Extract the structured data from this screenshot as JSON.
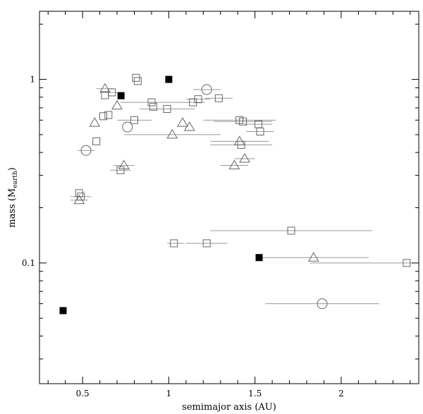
{
  "chart_data": {
    "type": "scatter",
    "title": "",
    "xlabel": "semimajor axis (AU)",
    "ylabel": {
      "main": "mass (M",
      "sub": "earth",
      "close": ")"
    },
    "xlim": [
      0.25,
      2.45
    ],
    "ylim": [
      0.022,
      2.35
    ],
    "y_scale": "log",
    "grid": false,
    "legend": "none",
    "x_ticks": [
      0.5,
      1,
      1.5,
      2
    ],
    "x_tick_labels": [
      "0.5",
      "1",
      "1.5",
      "2"
    ],
    "x_minor_step": 0.1,
    "y_major_ticks": [
      0.1,
      1
    ],
    "y_tick_labels": [
      "0.1",
      "1"
    ],
    "colors": {
      "markers": "#666666",
      "solid": "#000000",
      "errorbars": "#999999"
    },
    "series": [
      {
        "marker": "filled-square",
        "points": [
          {
            "x": 0.387,
            "y": 0.055
          },
          {
            "x": 0.723,
            "y": 0.815
          },
          {
            "x": 1.0,
            "y": 1.0
          },
          {
            "x": 1.524,
            "y": 0.107
          }
        ]
      },
      {
        "marker": "open-circle",
        "points": [
          {
            "x": 0.52,
            "y": 0.41,
            "xerr": [
              0.47,
              0.57
            ]
          },
          {
            "x": 0.76,
            "y": 0.55
          },
          {
            "x": 1.22,
            "y": 0.88,
            "xerr": [
              1.14,
              1.3
            ]
          },
          {
            "x": 1.89,
            "y": 0.06,
            "xerr": [
              1.56,
              2.22
            ]
          }
        ]
      },
      {
        "marker": "open-triangle",
        "points": [
          {
            "x": 0.63,
            "y": 0.89,
            "xerr": [
              0.58,
              0.68
            ]
          },
          {
            "x": 0.7,
            "y": 0.72
          },
          {
            "x": 0.57,
            "y": 0.58
          },
          {
            "x": 0.74,
            "y": 0.34,
            "xerr": [
              0.68,
              0.8
            ]
          },
          {
            "x": 0.48,
            "y": 0.22,
            "xerr": [
              0.43,
              0.53
            ]
          },
          {
            "x": 1.08,
            "y": 0.58
          },
          {
            "x": 1.12,
            "y": 0.55
          },
          {
            "x": 1.02,
            "y": 0.5,
            "xerr": [
              0.74,
              1.3
            ]
          },
          {
            "x": 1.41,
            "y": 0.46,
            "xerr": [
              1.24,
              1.58
            ]
          },
          {
            "x": 1.44,
            "y": 0.37,
            "xerr": [
              1.38,
              1.5
            ]
          },
          {
            "x": 1.38,
            "y": 0.34,
            "xerr": [
              1.3,
              1.46
            ]
          },
          {
            "x": 1.84,
            "y": 0.107,
            "xerr": [
              1.52,
              2.16
            ]
          }
        ]
      },
      {
        "marker": "open-square",
        "points": [
          {
            "x": 0.81,
            "y": 1.02
          },
          {
            "x": 0.82,
            "y": 0.98
          },
          {
            "x": 0.67,
            "y": 0.85,
            "xerr": [
              0.61,
              0.73
            ]
          },
          {
            "x": 0.63,
            "y": 0.82
          },
          {
            "x": 0.9,
            "y": 0.75,
            "xerr": [
              0.72,
              1.08
            ]
          },
          {
            "x": 0.91,
            "y": 0.71
          },
          {
            "x": 0.99,
            "y": 0.69,
            "xerr": [
              0.83,
              1.15
            ]
          },
          {
            "x": 0.62,
            "y": 0.63
          },
          {
            "x": 0.65,
            "y": 0.64
          },
          {
            "x": 0.8,
            "y": 0.6,
            "xerr": [
              0.7,
              0.9
            ]
          },
          {
            "x": 1.14,
            "y": 0.75,
            "xerr": [
              1.07,
              1.21
            ]
          },
          {
            "x": 1.17,
            "y": 0.78,
            "xerr": [
              1.1,
              1.24
            ]
          },
          {
            "x": 1.29,
            "y": 0.79,
            "xerr": [
              1.21,
              1.37
            ]
          },
          {
            "x": 1.41,
            "y": 0.6,
            "xerr": [
              1.2,
              1.62
            ]
          },
          {
            "x": 1.43,
            "y": 0.59,
            "xerr": [
              1.26,
              1.6
            ]
          },
          {
            "x": 1.52,
            "y": 0.57,
            "xerr": [
              1.44,
              1.6
            ]
          },
          {
            "x": 1.53,
            "y": 0.52,
            "xerr": [
              1.45,
              1.61
            ]
          },
          {
            "x": 1.42,
            "y": 0.44,
            "xerr": [
              1.24,
              1.6
            ]
          },
          {
            "x": 0.58,
            "y": 0.46
          },
          {
            "x": 0.72,
            "y": 0.32,
            "xerr": [
              0.66,
              0.78
            ]
          },
          {
            "x": 0.48,
            "y": 0.24
          },
          {
            "x": 0.49,
            "y": 0.23,
            "xerr": [
              0.43,
              0.55
            ]
          },
          {
            "x": 1.71,
            "y": 0.15,
            "xerr": [
              1.24,
              2.18
            ]
          },
          {
            "x": 1.03,
            "y": 0.128,
            "xerr": [
              0.99,
              1.09
            ]
          },
          {
            "x": 1.22,
            "y": 0.128,
            "xerr": [
              1.1,
              1.34
            ]
          },
          {
            "x": 2.38,
            "y": 0.1,
            "xerr": [
              1.82,
              2.42
            ]
          }
        ]
      }
    ]
  }
}
